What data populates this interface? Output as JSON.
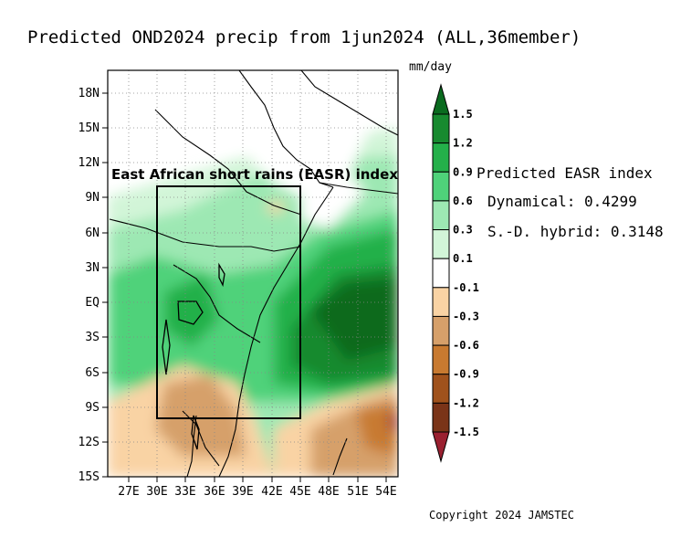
{
  "title": "Predicted OND2024 precip from 1jun2024 (ALL,36member)",
  "units": "mm/day",
  "lat_labels": [
    "18N",
    "15N",
    "12N",
    "9N",
    "6N",
    "3N",
    "EQ",
    "3S",
    "6S",
    "9S",
    "12S",
    "15S"
  ],
  "lon_labels": [
    "27E",
    "30E",
    "33E",
    "36E",
    "39E",
    "42E",
    "45E",
    "48E",
    "51E",
    "54E"
  ],
  "region_label": "East African short rains (EASR) index",
  "colorbar": {
    "levels": [
      "1.5",
      "1.2",
      "0.9",
      "0.6",
      "0.3",
      "0.1",
      "-0.1",
      "-0.3",
      "-0.6",
      "-0.9",
      "-1.2",
      "-1.5"
    ],
    "colors": [
      "#0a6b1f",
      "#178a2f",
      "#24b04a",
      "#4fd27a",
      "#9de8b3",
      "#d2f5d8",
      "#ffffff",
      "#f9d3a4",
      "#d6a06a",
      "#c87a30",
      "#a0521c",
      "#7a3418",
      "#9a2030"
    ]
  },
  "index": {
    "heading": "Predicted EASR index",
    "dynamical": "Dynamical: 0.4299",
    "hybrid": "S.-D. hybrid: 0.3148"
  },
  "copyright": "Copyright 2024 JAMSTEC"
}
